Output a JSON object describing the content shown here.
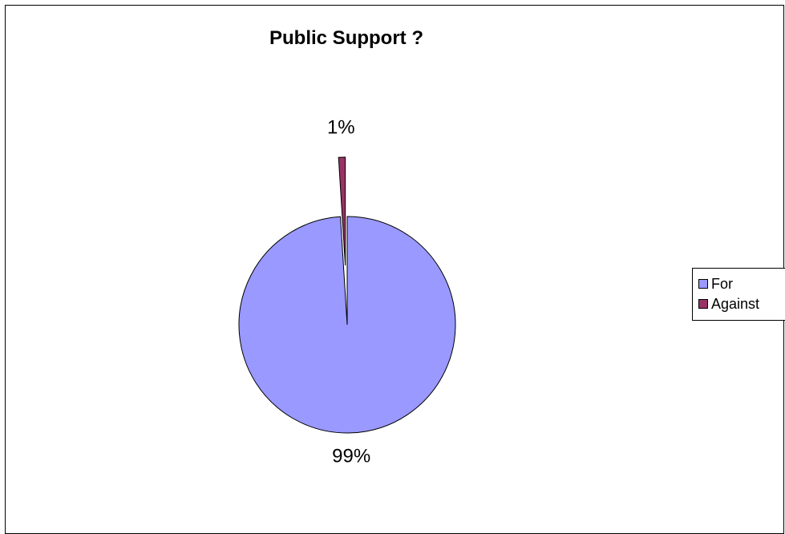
{
  "chart_data": {
    "type": "pie",
    "title": "Public Support ?",
    "categories": [
      "For",
      "Against"
    ],
    "values": [
      99,
      1
    ],
    "data_labels": [
      "99%",
      "1%"
    ],
    "colors": [
      "#9999FF",
      "#993366"
    ],
    "legend": {
      "position": "right",
      "entries": [
        "For",
        "Against"
      ]
    },
    "exploded_slice": "Against"
  }
}
